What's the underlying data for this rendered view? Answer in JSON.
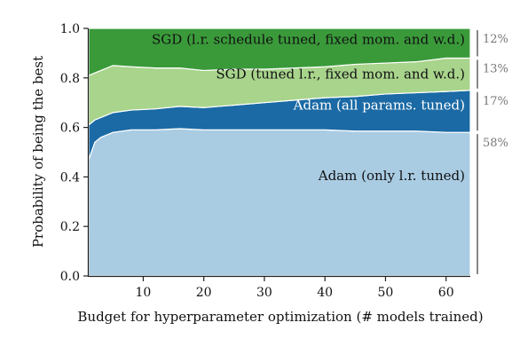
{
  "chart_data": {
    "type": "area",
    "stacked": true,
    "title": "",
    "xlabel": "Budget for hyperparameter optimization (# models trained)",
    "ylabel": "Probability of being the best",
    "xlim": [
      1,
      64
    ],
    "ylim": [
      0,
      1
    ],
    "xticks": [
      10,
      20,
      30,
      40,
      50,
      60
    ],
    "xtick_labels": [
      "10",
      "20",
      "30",
      "40",
      "50",
      "60"
    ],
    "yticks": [
      0,
      0.2,
      0.4,
      0.6,
      0.8,
      1.0
    ],
    "ytick_labels": [
      "0.0",
      "0.2",
      "0.4",
      "0.6",
      "0.8",
      "1.0"
    ],
    "grid": false,
    "x": [
      1,
      2,
      3,
      5,
      8,
      12,
      16,
      20,
      25,
      30,
      35,
      40,
      45,
      50,
      55,
      60,
      64
    ],
    "series": [
      {
        "name": "Adam (only l.r. tuned)",
        "color": "#a9cce3",
        "share_label": "58%",
        "values": [
          0.47,
          0.54,
          0.56,
          0.58,
          0.59,
          0.59,
          0.595,
          0.59,
          0.59,
          0.59,
          0.59,
          0.59,
          0.585,
          0.585,
          0.585,
          0.58,
          0.58
        ]
      },
      {
        "name": "Adam (all params. tuned)",
        "color": "#1b6aa5",
        "share_label": "17%",
        "values": [
          0.14,
          0.09,
          0.08,
          0.08,
          0.08,
          0.085,
          0.09,
          0.09,
          0.1,
          0.11,
          0.12,
          0.13,
          0.14,
          0.15,
          0.155,
          0.165,
          0.17
        ]
      },
      {
        "name": "SGD (tuned l.r., fixed mom. and w.d.)",
        "color": "#a8d48c",
        "share_label": "13%",
        "values": [
          0.2,
          0.19,
          0.19,
          0.19,
          0.175,
          0.165,
          0.155,
          0.15,
          0.145,
          0.135,
          0.13,
          0.125,
          0.13,
          0.125,
          0.125,
          0.135,
          0.13
        ]
      },
      {
        "name": "SGD (l.r. schedule tuned, fixed mom. and w.d.)",
        "color": "#3a9a3a",
        "share_label": "12%",
        "values": [
          0.19,
          0.18,
          0.17,
          0.15,
          0.155,
          0.16,
          0.16,
          0.17,
          0.165,
          0.165,
          0.16,
          0.155,
          0.145,
          0.14,
          0.135,
          0.12,
          0.12
        ]
      }
    ]
  }
}
